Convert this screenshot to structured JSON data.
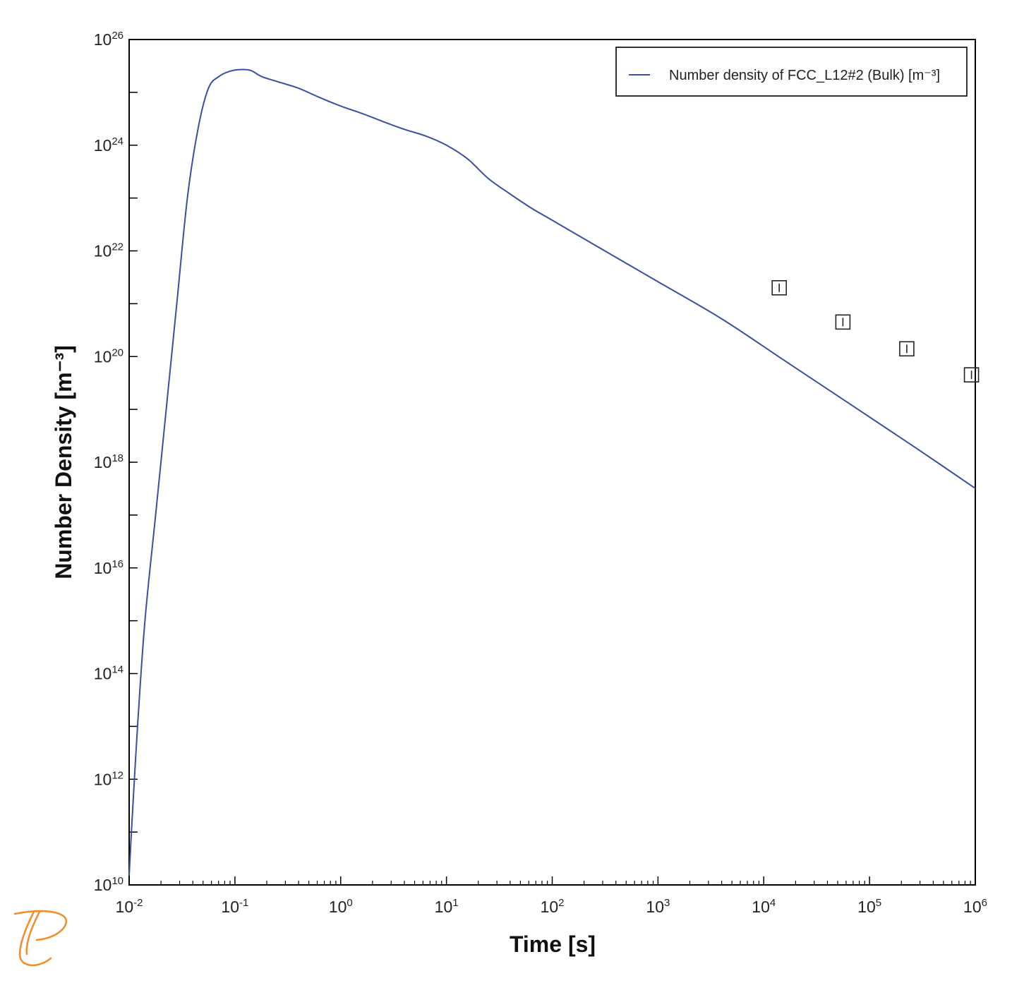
{
  "chart_data": {
    "type": "line",
    "xlabel": "Time [s]",
    "ylabel": "Number Density [m⁻³]",
    "xscale": "log",
    "yscale": "log",
    "xlim": [
      0.01,
      1000000
    ],
    "ylim": [
      10000000000.0,
      1e+26
    ],
    "x_tick_exponents": [
      "-2",
      "-1",
      "0",
      "1",
      "2",
      "3",
      "4",
      "5",
      "6"
    ],
    "y_tick_exponents": [
      "10",
      "12",
      "14",
      "16",
      "18",
      "20",
      "22",
      "24",
      "26"
    ],
    "tick_base": "10",
    "grid": false,
    "legend_position": "top-right",
    "series": [
      {
        "name": "Number density of FCC_L12#2 (Bulk) [m⁻³]",
        "color": "#3a4fa3",
        "style": "line",
        "x": [
          0.01,
          0.0105,
          0.012,
          0.0141,
          0.0178,
          0.0224,
          0.0282,
          0.0355,
          0.0447,
          0.0562,
          0.0708,
          0.0891,
          0.112,
          0.141,
          0.178,
          0.251,
          0.398,
          0.631,
          1.0,
          1.585,
          2.512,
          3.981,
          6.31,
          10.0,
          15.85,
          25.12,
          39.81,
          63.1,
          100,
          251,
          1000,
          3981,
          15849,
          63096,
          251189,
          1000000
        ],
        "y": [
          15000000000.0,
          100000000000.0,
          10000000000000.0,
          1000000000000000.0,
          1e+17,
          1e+19,
          1e+21,
          1e+23,
          2e+24,
          1.2e+25,
          2e+25,
          2.5e+25,
          2.7e+25,
          2.6e+25,
          2e+25,
          1.6e+25,
          1.2e+25,
          8e+24,
          5.5e+24,
          4e+24,
          2.8e+24,
          2e+24,
          1.5e+24,
          1e+24,
          5.5e+23,
          2.3e+23,
          1.2e+23,
          6.5e+22,
          3.8e+22,
          1.3e+22,
          2.6e+21,
          5.2e+20,
          8.3e+19,
          1.32e+19,
          2.1e+18,
          3.2e+17
        ]
      },
      {
        "name": "",
        "color": "#222222",
        "style": "markers",
        "marker": "square-with-errorbar",
        "x": [
          14000,
          56000,
          225000,
          920000
        ],
        "y": [
          2e+21,
          4.5e+20,
          1.4e+20,
          4.5e+19
        ]
      }
    ]
  },
  "logo": {
    "name": "thermo-calc-logo",
    "color": "#f28c28"
  }
}
